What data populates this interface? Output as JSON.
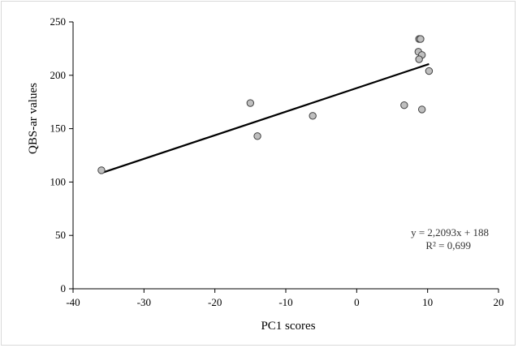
{
  "chart_data": {
    "type": "scatter",
    "title": "",
    "xlabel": "PC1 scores",
    "ylabel": "QBS-ar values",
    "xlim": [
      -40,
      20
    ],
    "ylim": [
      0,
      250
    ],
    "x_ticks": [
      -40,
      -30,
      -20,
      -10,
      0,
      10,
      20
    ],
    "y_ticks": [
      0,
      50,
      100,
      150,
      200,
      250
    ],
    "grid": false,
    "legend": "none",
    "colors": {
      "marker_fill": "#bfbfbf",
      "marker_edge": "#404040",
      "trendline": "#000000",
      "axis": "#000000"
    },
    "series": [
      {
        "points": [
          {
            "x": -36.0,
            "y": 111
          },
          {
            "x": -15.0,
            "y": 174
          },
          {
            "x": -14.0,
            "y": 143
          },
          {
            "x": -6.2,
            "y": 162
          },
          {
            "x": 6.7,
            "y": 172
          },
          {
            "x": 8.8,
            "y": 234
          },
          {
            "x": 9.0,
            "y": 234
          },
          {
            "x": 8.7,
            "y": 222
          },
          {
            "x": 9.2,
            "y": 219
          },
          {
            "x": 8.8,
            "y": 215
          },
          {
            "x": 9.2,
            "y": 168
          },
          {
            "x": 10.2,
            "y": 204
          }
        ]
      }
    ],
    "trendline": {
      "slope": 2.2093,
      "intercept": 188,
      "x_range": [
        -36.0,
        10.2
      ],
      "equation_text": "y = 2,2093x + 188",
      "r2_text": "R² = 0,699"
    }
  }
}
